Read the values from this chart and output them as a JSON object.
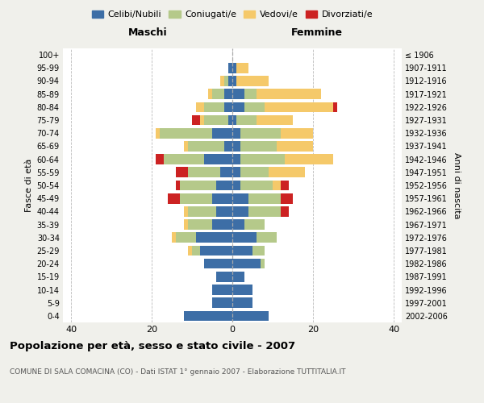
{
  "age_groups": [
    "0-4",
    "5-9",
    "10-14",
    "15-19",
    "20-24",
    "25-29",
    "30-34",
    "35-39",
    "40-44",
    "45-49",
    "50-54",
    "55-59",
    "60-64",
    "65-69",
    "70-74",
    "75-79",
    "80-84",
    "85-89",
    "90-94",
    "95-99",
    "100+"
  ],
  "birth_years": [
    "2002-2006",
    "1997-2001",
    "1992-1996",
    "1987-1991",
    "1982-1986",
    "1977-1981",
    "1972-1976",
    "1967-1971",
    "1962-1966",
    "1957-1961",
    "1952-1956",
    "1947-1951",
    "1942-1946",
    "1937-1941",
    "1932-1936",
    "1927-1931",
    "1922-1926",
    "1917-1921",
    "1912-1916",
    "1907-1911",
    "≤ 1906"
  ],
  "male": {
    "celibi": [
      12,
      5,
      5,
      4,
      7,
      8,
      9,
      5,
      4,
      5,
      4,
      3,
      7,
      2,
      5,
      1,
      2,
      2,
      1,
      1,
      0
    ],
    "coniugati": [
      0,
      0,
      0,
      0,
      0,
      2,
      5,
      6,
      7,
      8,
      9,
      8,
      10,
      9,
      13,
      6,
      5,
      3,
      1,
      0,
      0
    ],
    "vedovi": [
      0,
      0,
      0,
      0,
      0,
      1,
      1,
      1,
      1,
      0,
      0,
      0,
      0,
      1,
      1,
      1,
      2,
      1,
      1,
      0,
      0
    ],
    "divorziati": [
      0,
      0,
      0,
      0,
      0,
      0,
      0,
      0,
      0,
      3,
      1,
      3,
      2,
      0,
      0,
      2,
      0,
      0,
      0,
      0,
      0
    ]
  },
  "female": {
    "nubili": [
      9,
      5,
      5,
      3,
      7,
      5,
      6,
      3,
      4,
      4,
      2,
      2,
      2,
      2,
      2,
      1,
      3,
      3,
      1,
      1,
      0
    ],
    "coniugate": [
      0,
      0,
      0,
      0,
      1,
      3,
      5,
      5,
      8,
      8,
      8,
      7,
      11,
      9,
      10,
      5,
      5,
      3,
      0,
      0,
      0
    ],
    "vedove": [
      0,
      0,
      0,
      0,
      0,
      0,
      0,
      0,
      0,
      0,
      2,
      9,
      12,
      9,
      8,
      9,
      17,
      16,
      8,
      3,
      0
    ],
    "divorziate": [
      0,
      0,
      0,
      0,
      0,
      0,
      0,
      0,
      2,
      3,
      2,
      0,
      0,
      0,
      0,
      0,
      1,
      0,
      0,
      0,
      0
    ]
  },
  "colors": {
    "celibi": "#3d6ea6",
    "coniugati": "#b5c98a",
    "vedovi": "#f5c96a",
    "divorziati": "#cc2222"
  },
  "xlim": 42,
  "title": "Popolazione per età, sesso e stato civile - 2007",
  "subtitle": "COMUNE DI SALA COMACINA (CO) - Dati ISTAT 1° gennaio 2007 - Elaborazione TUTTITALIA.IT",
  "ylabel_left": "Fasce di età",
  "ylabel_right": "Anni di nascita",
  "xlabel_maschi": "Maschi",
  "xlabel_femmine": "Femmine",
  "legend_labels": [
    "Celibi/Nubili",
    "Coniugati/e",
    "Vedovi/e",
    "Divorziati/e"
  ],
  "background_color": "#f0f0eb",
  "plot_bg_color": "#ffffff"
}
